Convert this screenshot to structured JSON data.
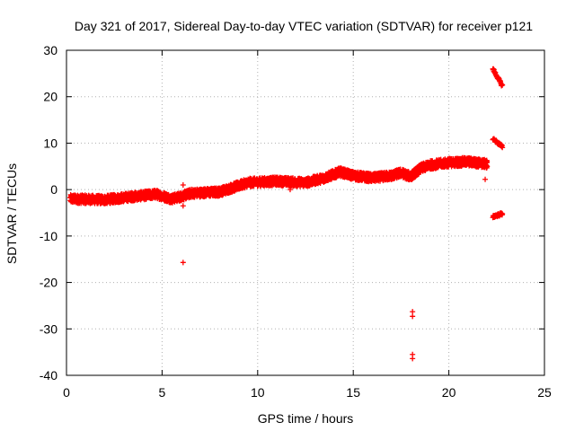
{
  "chart_data": {
    "type": "scatter",
    "title": "Day 321 of 2017, Sidereal Day-to-day VTEC variation (SDTVAR) for receiver p121",
    "xlabel": "GPS time / hours",
    "ylabel": "SDTVAR / TECUs",
    "xlim": [
      0,
      25
    ],
    "ylim": [
      -40,
      30
    ],
    "xticks": [
      0,
      5,
      10,
      15,
      20,
      25
    ],
    "yticks": [
      -40,
      -30,
      -20,
      -10,
      0,
      10,
      20,
      30
    ],
    "grid": true,
    "marker": "+",
    "color": "#ff0000",
    "series": [
      {
        "name": "p121",
        "trend_x": [
          0.2,
          2,
          3.5,
          4.7,
          5.5,
          6,
          6.5,
          8,
          9.5,
          11,
          12.5,
          13.5,
          14.3,
          15,
          16,
          17,
          17.5,
          18,
          18.5,
          19,
          20,
          21,
          22
        ],
        "trend_y": [
          -2,
          -2.2,
          -1.5,
          -1,
          -2,
          -1.5,
          -0.8,
          -0.5,
          1.5,
          1.8,
          1.5,
          2.5,
          3.8,
          3,
          2.5,
          3,
          3.6,
          2.8,
          4.5,
          5.3,
          5.8,
          6,
          5.5
        ],
        "spread": 0.9,
        "outliers": [
          {
            "x": 6.1,
            "y": -15.7
          },
          {
            "x": 6.1,
            "y": 1
          },
          {
            "x": 6.1,
            "y": -3.5
          },
          {
            "x": 18.1,
            "y": -26.3
          },
          {
            "x": 18.1,
            "y": -27.3
          },
          {
            "x": 18.1,
            "y": -35.5
          },
          {
            "x": 18.1,
            "y": -36.4
          },
          {
            "x": 21.9,
            "y": 2.2
          },
          {
            "x": 11.7,
            "y": 0
          },
          {
            "x": 4.6,
            "y": -0.2
          }
        ],
        "segments": [
          {
            "x": [
              22.3,
              22.8
            ],
            "y": [
              26,
              22.3
            ]
          },
          {
            "x": [
              22.3,
              22.8
            ],
            "y": [
              11,
              9.2
            ]
          },
          {
            "x": [
              22.3,
              22.8
            ],
            "y": [
              -5.8,
              -5.2
            ]
          }
        ]
      }
    ]
  }
}
